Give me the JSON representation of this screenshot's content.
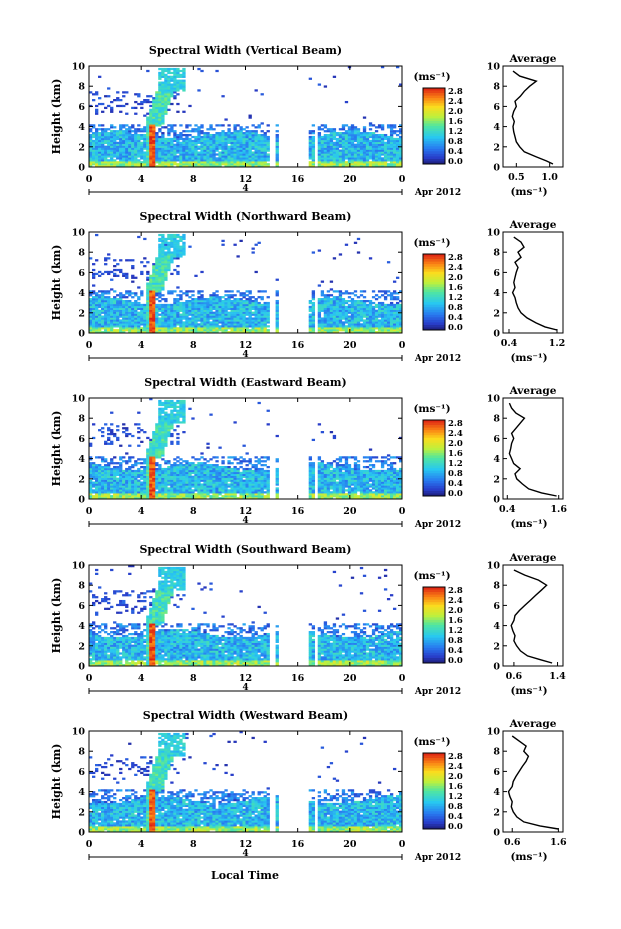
{
  "figure": {
    "date_label": "Apr 2012",
    "xlabel": "Local Time",
    "colorbar_unit": "(ms⁻¹)",
    "colorbar_ticks": [
      "2.8",
      "2.4",
      "2.0",
      "1.6",
      "1.2",
      "0.8",
      "0.4",
      "0.0"
    ],
    "profile_title": "Average",
    "profile_xlabel": "(ms⁻¹)"
  },
  "chart_data": [
    {
      "type": "heatmap",
      "title": "Spectral Width (Vertical Beam)",
      "ylabel": "Height (km)",
      "x_ticks": [
        "0",
        "4",
        "8",
        "12",
        "16",
        "20",
        "0"
      ],
      "y_ticks": [
        "0",
        "2",
        "4",
        "6",
        "8",
        "10"
      ],
      "xlim": [
        0,
        24
      ],
      "ylim": [
        0,
        10
      ],
      "date_marker": "4",
      "colorbar": {
        "min": 0.0,
        "max": 3.0,
        "unit": "(ms⁻¹)"
      },
      "profile": {
        "title": "Average",
        "x_ticks": [
          "0.5",
          "1.0"
        ],
        "xlim": [
          0.3,
          1.2
        ],
        "ylim": [
          0,
          10
        ],
        "heights": [
          0.3,
          0.6,
          1.0,
          1.5,
          2.0,
          2.5,
          3.0,
          3.5,
          4.0,
          4.5,
          5.0,
          5.5,
          6.0,
          6.5,
          7.0,
          7.5,
          8.0,
          8.5,
          9.0,
          9.5
        ],
        "values": [
          1.05,
          0.95,
          0.8,
          0.62,
          0.55,
          0.5,
          0.48,
          0.46,
          0.45,
          0.47,
          0.44,
          0.46,
          0.5,
          0.48,
          0.56,
          0.62,
          0.7,
          0.8,
          0.55,
          0.45
        ]
      }
    },
    {
      "type": "heatmap",
      "title": "Spectral Width (Northward Beam)",
      "ylabel": "Height (km)",
      "x_ticks": [
        "0",
        "4",
        "8",
        "12",
        "16",
        "20",
        "0"
      ],
      "y_ticks": [
        "0",
        "2",
        "4",
        "6",
        "8",
        "10"
      ],
      "xlim": [
        0,
        24
      ],
      "ylim": [
        0,
        10
      ],
      "date_marker": "4",
      "colorbar": {
        "min": 0.0,
        "max": 3.0,
        "unit": "(ms⁻¹)"
      },
      "profile": {
        "title": "Average",
        "x_ticks": [
          "0.4",
          "1.2"
        ],
        "xlim": [
          0.3,
          1.3
        ],
        "ylim": [
          0,
          10
        ],
        "heights": [
          0.3,
          0.6,
          1.0,
          1.5,
          2.0,
          2.5,
          3.0,
          3.5,
          4.0,
          4.5,
          5.0,
          5.5,
          6.0,
          6.5,
          7.0,
          7.5,
          8.0,
          8.5,
          9.0,
          9.5
        ],
        "values": [
          1.2,
          1.0,
          0.85,
          0.7,
          0.6,
          0.55,
          0.52,
          0.5,
          0.46,
          0.5,
          0.48,
          0.5,
          0.52,
          0.55,
          0.5,
          0.6,
          0.55,
          0.65,
          0.6,
          0.48
        ]
      }
    },
    {
      "type": "heatmap",
      "title": "Spectral Width (Eastward Beam)",
      "ylabel": "Height (km)",
      "x_ticks": [
        "0",
        "4",
        "8",
        "12",
        "16",
        "20",
        "0"
      ],
      "y_ticks": [
        "0",
        "2",
        "4",
        "6",
        "8",
        "10"
      ],
      "xlim": [
        0,
        24
      ],
      "ylim": [
        0,
        10
      ],
      "date_marker": "4",
      "colorbar": {
        "min": 0.0,
        "max": 3.0,
        "unit": "(ms⁻¹)"
      },
      "profile": {
        "title": "Average",
        "x_ticks": [
          "0.4",
          "1.6"
        ],
        "xlim": [
          0.3,
          1.7
        ],
        "ylim": [
          0,
          10
        ],
        "heights": [
          0.3,
          0.6,
          1.0,
          1.5,
          2.0,
          2.5,
          3.0,
          3.5,
          4.0,
          4.5,
          5.0,
          5.5,
          6.0,
          6.5,
          7.0,
          7.5,
          8.0,
          8.5,
          9.0,
          9.5
        ],
        "values": [
          1.55,
          1.2,
          0.9,
          0.75,
          0.62,
          0.58,
          0.7,
          0.55,
          0.5,
          0.45,
          0.48,
          0.5,
          0.55,
          0.5,
          0.6,
          0.7,
          0.8,
          0.6,
          0.5,
          0.45
        ]
      }
    },
    {
      "type": "heatmap",
      "title": "Spectral Width (Southward Beam)",
      "ylabel": "Height (km)",
      "x_ticks": [
        "0",
        "4",
        "8",
        "12",
        "16",
        "20",
        "0"
      ],
      "y_ticks": [
        "0",
        "2",
        "4",
        "6",
        "8",
        "10"
      ],
      "xlim": [
        0,
        24
      ],
      "ylim": [
        0,
        10
      ],
      "date_marker": "4",
      "colorbar": {
        "min": 0.0,
        "max": 3.0,
        "unit": "(ms⁻¹)"
      },
      "profile": {
        "title": "Average",
        "x_ticks": [
          "0.6",
          "1.4"
        ],
        "xlim": [
          0.4,
          1.5
        ],
        "ylim": [
          0,
          10
        ],
        "heights": [
          0.3,
          0.6,
          1.0,
          1.5,
          2.0,
          2.5,
          3.0,
          3.5,
          4.0,
          4.5,
          5.0,
          5.5,
          6.0,
          6.5,
          7.0,
          7.5,
          8.0,
          8.5,
          9.0,
          9.5
        ],
        "values": [
          1.3,
          1.1,
          0.85,
          0.72,
          0.65,
          0.6,
          0.62,
          0.58,
          0.55,
          0.6,
          0.62,
          0.7,
          0.8,
          0.9,
          1.0,
          1.1,
          1.2,
          1.05,
          0.8,
          0.6
        ]
      }
    },
    {
      "type": "heatmap",
      "title": "Spectral Width (Westward Beam)",
      "ylabel": "Height (km)",
      "x_ticks": [
        "0",
        "4",
        "8",
        "12",
        "16",
        "20",
        "0"
      ],
      "y_ticks": [
        "0",
        "2",
        "4",
        "6",
        "8",
        "10"
      ],
      "xlim": [
        0,
        24
      ],
      "ylim": [
        0,
        10
      ],
      "date_marker": "4",
      "colorbar": {
        "min": 0.0,
        "max": 3.0,
        "unit": "(ms⁻¹)"
      },
      "profile": {
        "title": "Average",
        "x_ticks": [
          "0.6",
          "1.6"
        ],
        "xlim": [
          0.4,
          1.7
        ],
        "ylim": [
          0,
          10
        ],
        "heights": [
          0.3,
          0.6,
          1.0,
          1.5,
          2.0,
          2.5,
          3.0,
          3.5,
          4.0,
          4.5,
          5.0,
          5.5,
          6.0,
          6.5,
          7.0,
          7.5,
          8.0,
          8.5,
          9.0,
          9.5
        ],
        "values": [
          1.6,
          1.2,
          0.85,
          0.7,
          0.62,
          0.58,
          0.6,
          0.55,
          0.52,
          0.6,
          0.62,
          0.68,
          0.75,
          0.82,
          0.9,
          0.95,
          0.85,
          0.9,
          0.75,
          0.6
        ]
      }
    }
  ]
}
